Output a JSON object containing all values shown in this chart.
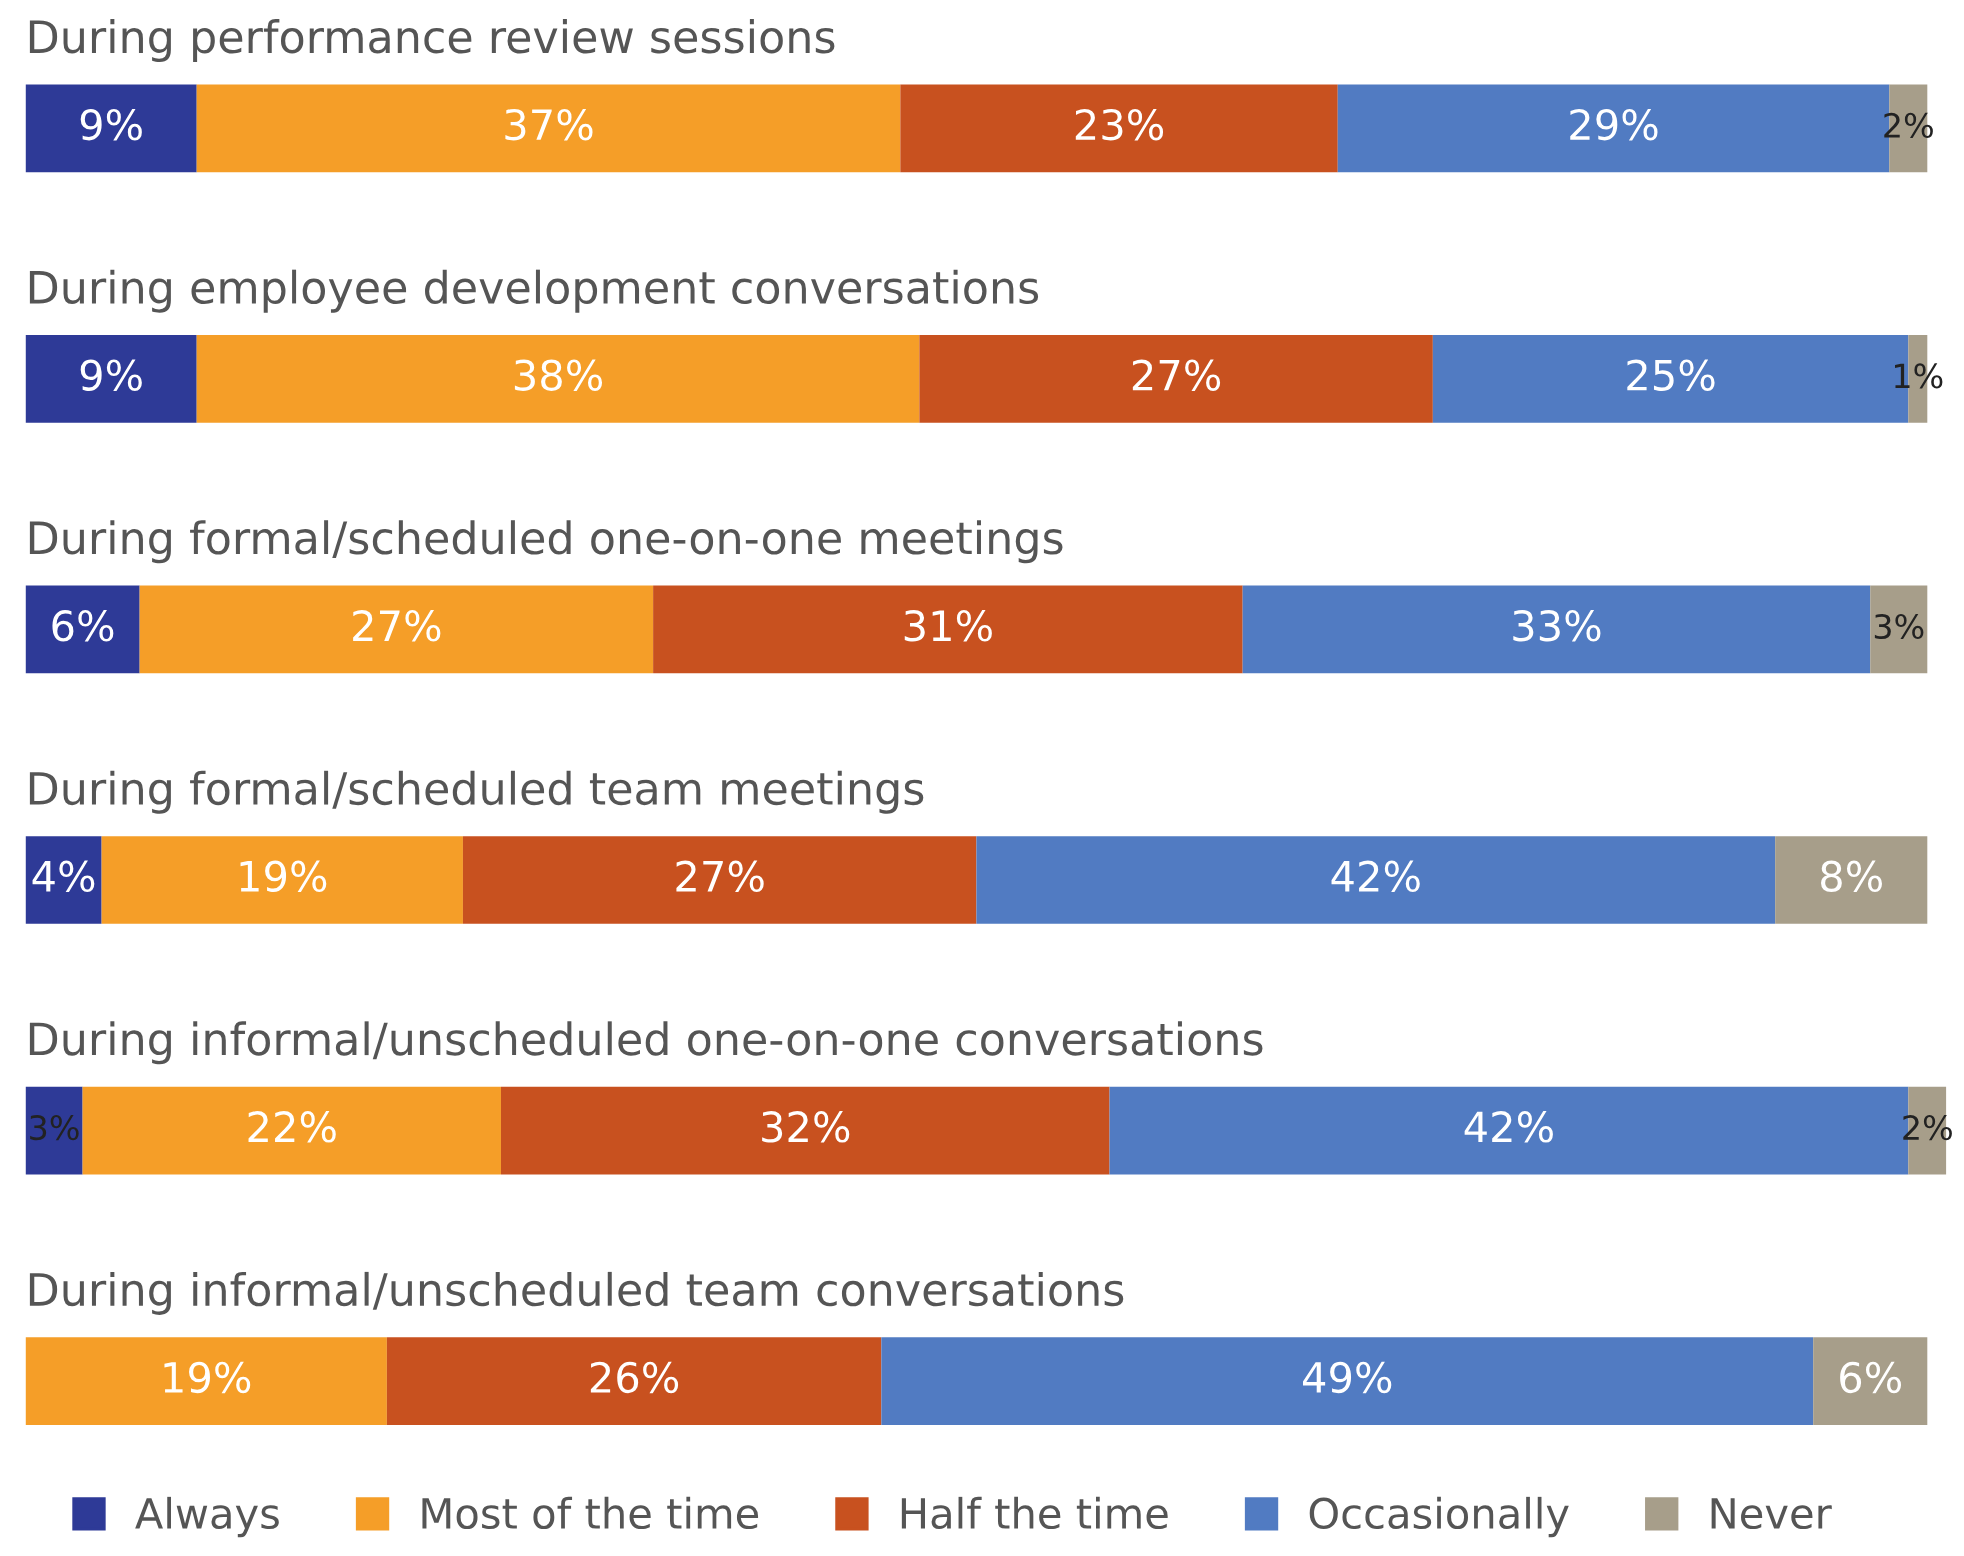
{
  "chart_data": {
    "type": "bar",
    "orientation": "horizontal",
    "stacked": true,
    "legend": "bottom",
    "categories": [
      "During performance review sessions",
      "During employee development conversations",
      "During formal/scheduled one-on-one meetings",
      "During formal/scheduled team meetings",
      "During informal/unscheduled one-on-one conversations",
      "During informal/unscheduled team conversations"
    ],
    "series": [
      {
        "name": "Always",
        "color": "#2e3a97",
        "values": [
          9,
          9,
          6,
          4,
          3,
          null
        ],
        "value_labels": [
          "9%",
          "9%",
          "6%",
          "4%",
          "3%",
          null
        ]
      },
      {
        "name": "Most of the time",
        "color": "#f59e28",
        "values": [
          37,
          38,
          27,
          19,
          22,
          19
        ],
        "value_labels": [
          "37%",
          "38%",
          "27%",
          "19%",
          "22%",
          "19%"
        ]
      },
      {
        "name": "Half the time",
        "color": "#c8511f",
        "values": [
          23,
          27,
          31,
          27,
          32,
          26
        ],
        "value_labels": [
          "23%",
          "27%",
          "31%",
          "27%",
          "32%",
          "26%"
        ]
      },
      {
        "name": "Occasionally",
        "color": "#517bc2",
        "values": [
          29,
          25,
          33,
          42,
          42,
          49
        ],
        "value_labels": [
          "29%",
          "25%",
          "33%",
          "42%",
          "42%",
          "49%"
        ]
      },
      {
        "name": "Never",
        "color": "#a79e8a",
        "values": [
          2,
          1,
          3,
          8,
          2,
          6
        ],
        "value_labels": [
          "2%",
          "1%",
          "3%",
          "8%",
          "2%",
          "6%"
        ]
      }
    ]
  }
}
